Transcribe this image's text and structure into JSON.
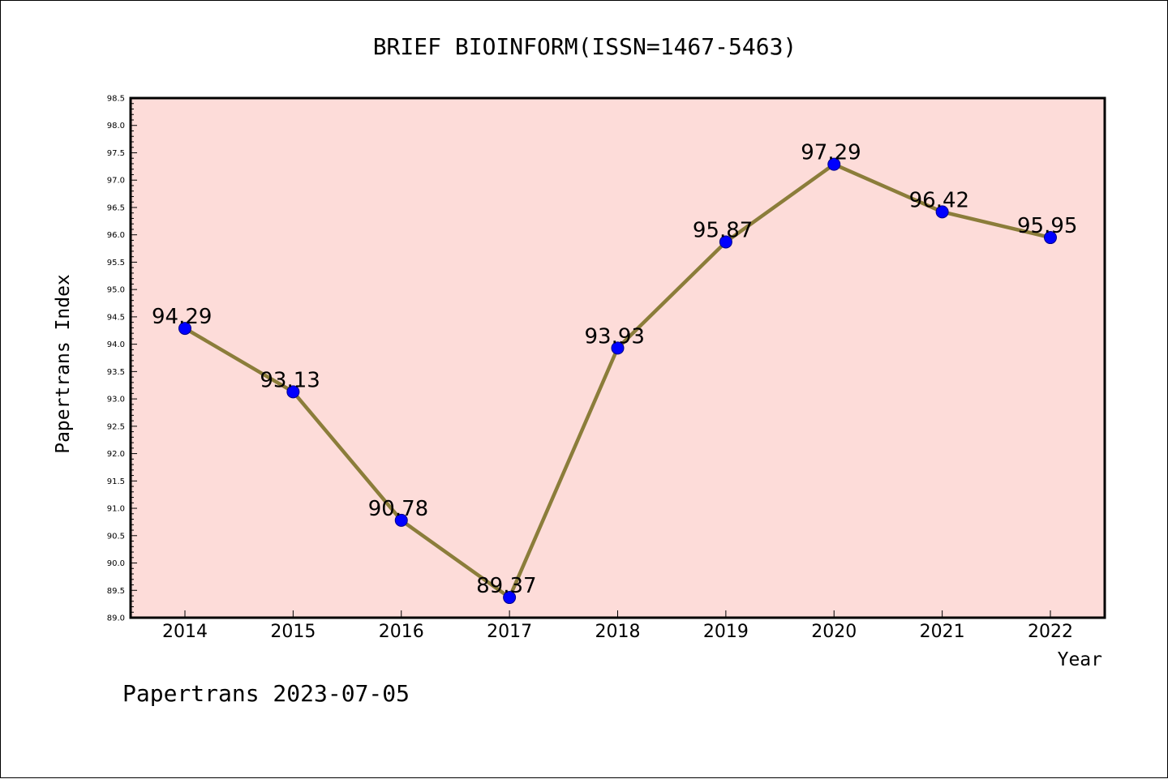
{
  "chart_data": {
    "type": "line",
    "title": "BRIEF BIOINFORM(ISSN=1467-5463)",
    "xlabel": "Year",
    "ylabel": "Papertrans Index",
    "categories": [
      "2014",
      "2015",
      "2016",
      "2017",
      "2018",
      "2019",
      "2020",
      "2021",
      "2022"
    ],
    "series": [
      {
        "values": [
          94.29,
          93.13,
          90.78,
          89.37,
          93.93,
          95.87,
          97.29,
          96.42,
          95.95
        ],
        "labels": [
          "94.29",
          "93.13",
          "90.78",
          "89.37",
          "93.93",
          "95.87",
          "97.29",
          "96.42",
          "95.95"
        ]
      }
    ],
    "ylim": [
      89.0,
      98.5
    ],
    "yticks": [
      "89.0",
      "89.5",
      "90.0",
      "90.5",
      "91.0",
      "91.5",
      "92.0",
      "92.5",
      "93.0",
      "93.5",
      "94.0",
      "94.5",
      "95.0",
      "95.5",
      "96.0",
      "96.5",
      "97.0",
      "97.5",
      "98.0",
      "98.5"
    ],
    "grid": false,
    "legend": "none",
    "colors": {
      "plot_background": "#fddcd9",
      "line": "#8b7d3a",
      "marker": "#0000ff",
      "marker_edge": "#00008b"
    }
  },
  "footer": {
    "text": "Papertrans 2023-07-05"
  }
}
